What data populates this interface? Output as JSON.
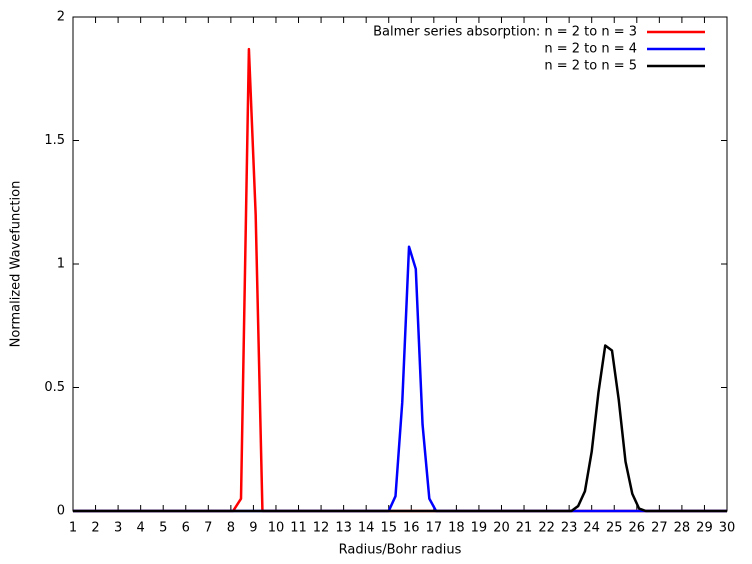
{
  "chart_data": {
    "type": "line",
    "xlabel": "Radius/Bohr radius",
    "ylabel": "Normalized Wavefunction",
    "xlim": [
      1,
      30
    ],
    "ylim": [
      0,
      2
    ],
    "xticks": [
      1,
      2,
      3,
      4,
      5,
      6,
      7,
      8,
      9,
      10,
      11,
      12,
      13,
      14,
      15,
      16,
      17,
      18,
      19,
      20,
      21,
      22,
      23,
      24,
      25,
      26,
      27,
      28,
      29,
      30
    ],
    "yticks": [
      0,
      0.5,
      1,
      1.5,
      2
    ],
    "grid": false,
    "legend": "top-right",
    "series": [
      {
        "name": "Balmer series absorption: n = 2 to n = 3",
        "color": "#ff0000",
        "x": [
          1,
          8.1,
          8.45,
          8.8,
          9.1,
          9.4,
          30
        ],
        "values": [
          0,
          0,
          0.05,
          1.87,
          1.2,
          0,
          0
        ]
      },
      {
        "name": "n = 2 to n = 4",
        "color": "#0000ff",
        "x": [
          1,
          15.0,
          15.3,
          15.6,
          15.9,
          16.2,
          16.5,
          16.8,
          17.1,
          30
        ],
        "values": [
          0,
          0,
          0.06,
          0.44,
          1.07,
          0.98,
          0.35,
          0.05,
          0,
          0
        ]
      },
      {
        "name": "n = 2 to n = 5",
        "color": "#000000",
        "x": [
          1,
          23.1,
          23.4,
          23.7,
          24.0,
          24.3,
          24.6,
          24.9,
          25.2,
          25.5,
          25.8,
          26.1,
          26.4,
          30
        ],
        "values": [
          0,
          0,
          0.02,
          0.08,
          0.24,
          0.48,
          0.67,
          0.65,
          0.45,
          0.2,
          0.07,
          0.01,
          0,
          0
        ]
      }
    ]
  }
}
